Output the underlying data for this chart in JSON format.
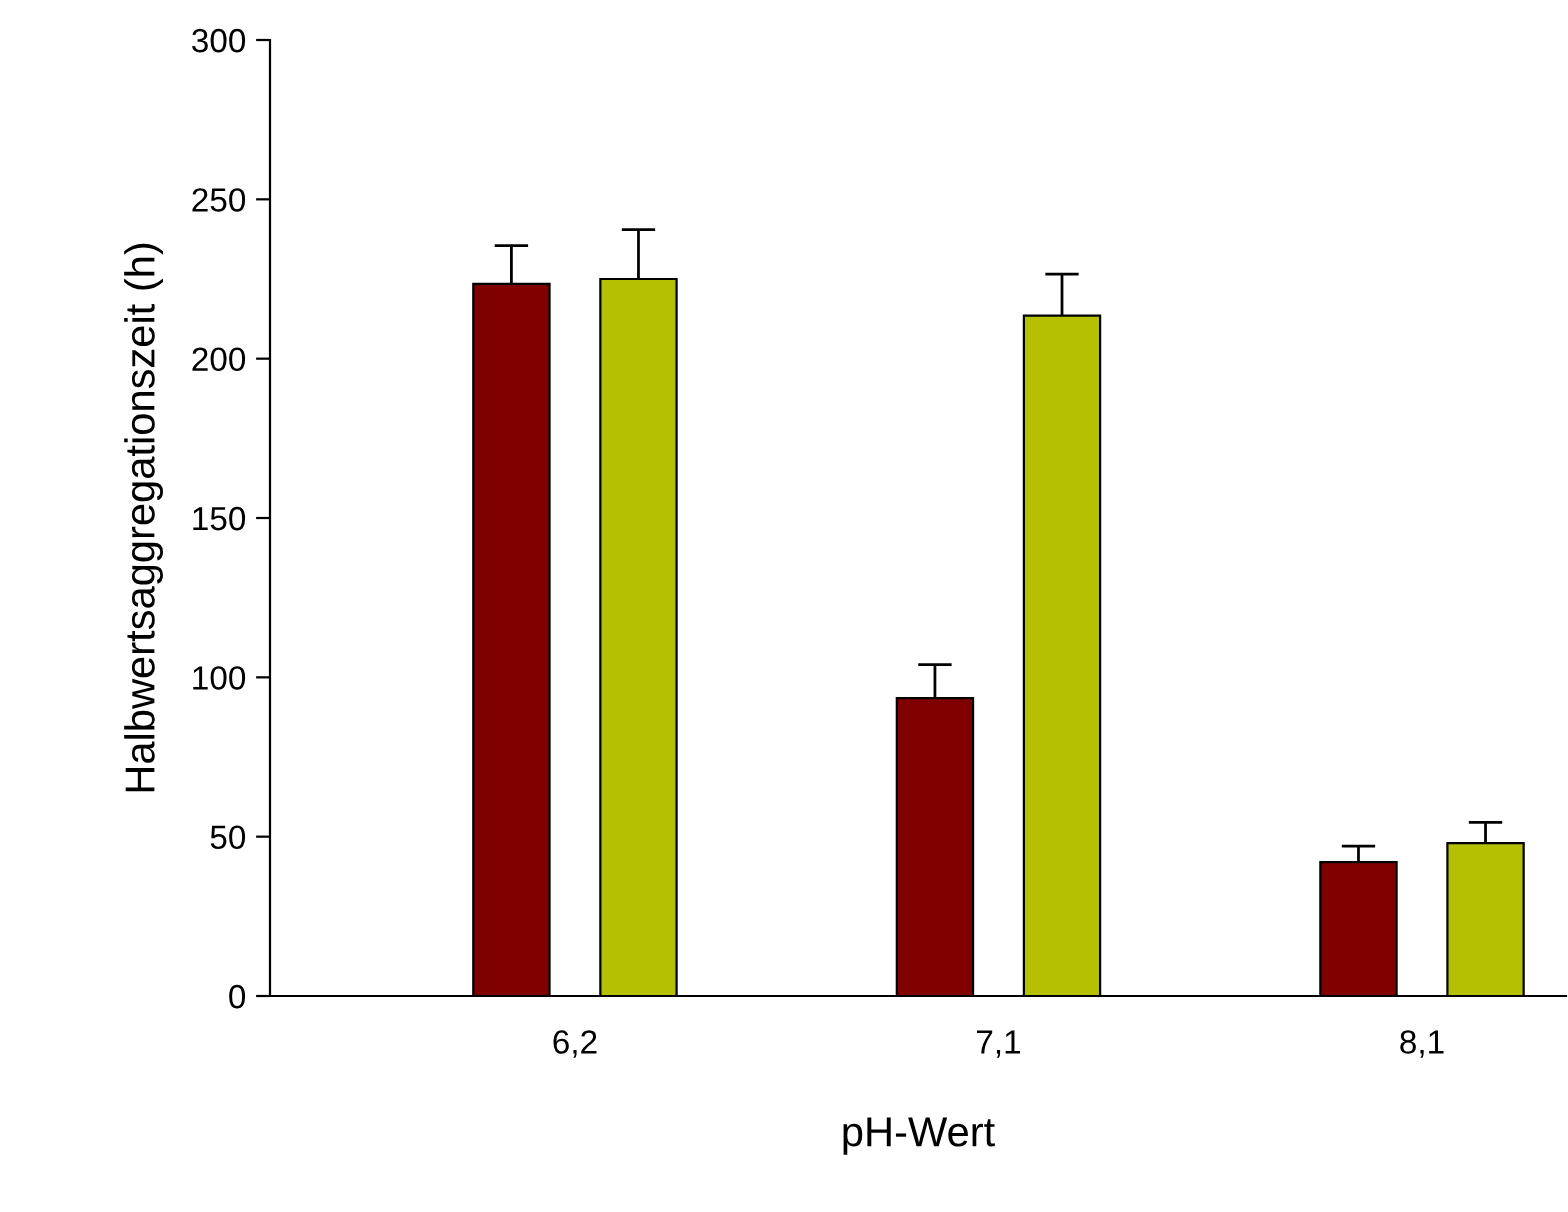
{
  "chart_data": {
    "type": "bar",
    "xlabel": "pH-Wert",
    "ylabel": "Halbwertsaggregationszeit (h)",
    "categories": [
      "6,2",
      "7,1",
      "8,1"
    ],
    "series": [
      {
        "color": "#800000",
        "values": [
          223.5,
          93.5,
          42
        ],
        "errors": [
          12,
          10.5,
          5
        ]
      },
      {
        "color": "#b5c000",
        "values": [
          225,
          213.5,
          48
        ],
        "errors": [
          15.5,
          13,
          6.5
        ]
      }
    ],
    "ylim": [
      0,
      300
    ],
    "yticks": [
      0,
      50,
      100,
      150,
      200,
      250,
      300
    ],
    "grid": false
  }
}
